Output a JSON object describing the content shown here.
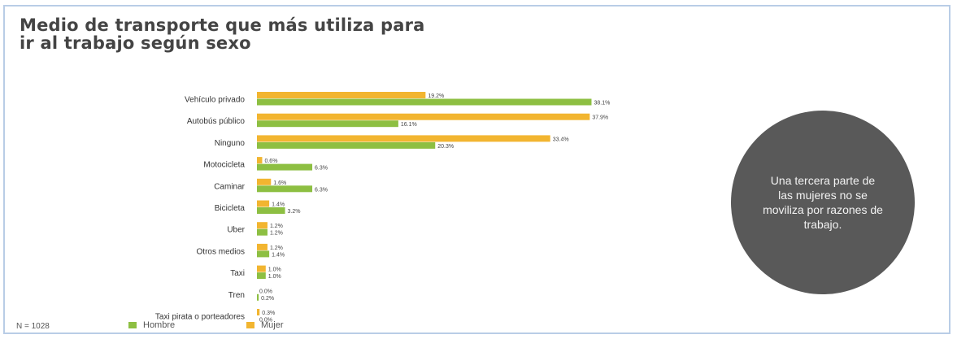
{
  "title": "Medio de transporte que más utiliza para ir al trabajo según sexo",
  "note": "Una tercera parte de las mujeres no se moviliza por razones de trabajo.",
  "sample_label": "N = 1028",
  "legend": [
    {
      "label": "Hombre",
      "color": "#8dbf42"
    },
    {
      "label": "Mujer",
      "color": "#f2b530"
    }
  ],
  "chart_data": {
    "type": "bar",
    "orientation": "horizontal",
    "xlim": [
      0,
      40
    ],
    "categories": [
      "Vehículo privado",
      "Autobús público",
      "Ninguno",
      "Motocicleta",
      "Caminar",
      "Bicicleta",
      "Uber",
      "Otros medios",
      "Taxi",
      "Tren",
      "Taxi pirata o porteadores"
    ],
    "series": [
      {
        "name": "Mujer",
        "color": "#f2b530",
        "values": [
          19.2,
          37.9,
          33.4,
          0.6,
          1.6,
          1.4,
          1.2,
          1.2,
          1.0,
          0.0,
          0.3
        ],
        "labels": [
          "19.2%",
          "37.9%",
          "33.4%",
          "0.6%",
          "1.6%",
          "1.4%",
          "1.2%",
          "1.2%",
          "1.0%",
          "0.0%",
          "0.3%"
        ]
      },
      {
        "name": "Hombre",
        "color": "#8dbf42",
        "values": [
          38.1,
          16.1,
          20.3,
          6.3,
          6.3,
          3.2,
          1.2,
          1.4,
          1.0,
          0.2,
          0.0
        ],
        "labels": [
          "38.1%",
          "16.1%",
          "20.3%",
          "6.3%",
          "6.3%",
          "3.2%",
          "1.2%",
          "1.4%",
          "1.0%",
          "0.2%",
          "0.0%"
        ]
      }
    ]
  }
}
